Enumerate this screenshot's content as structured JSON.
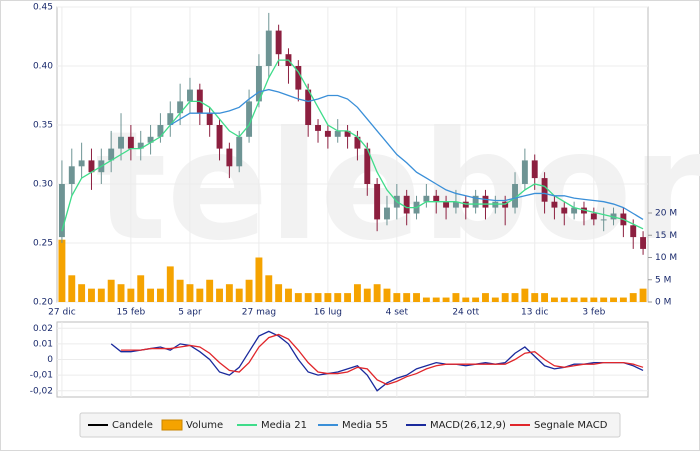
{
  "chart_data": [
    {
      "type": "candlestick",
      "watermark": "teleborsa",
      "categories": [
        "27 dic",
        null,
        null,
        null,
        null,
        null,
        null,
        "15 feb",
        null,
        null,
        null,
        null,
        null,
        "5 apr",
        null,
        null,
        null,
        null,
        null,
        null,
        "27 mag",
        null,
        null,
        null,
        null,
        null,
        null,
        "16 lug",
        null,
        null,
        null,
        null,
        null,
        null,
        "4 set",
        null,
        null,
        null,
        null,
        null,
        null,
        "24 ott",
        null,
        null,
        null,
        null,
        null,
        null,
        "13 dic",
        null,
        null,
        null,
        null,
        null,
        "3 feb",
        null,
        null,
        null,
        null,
        null
      ],
      "ylim": [
        0.2,
        0.45
      ],
      "yticks": [
        {
          "value": 0.2,
          "label": "0.20"
        },
        0.25,
        {
          "value": 0.3,
          "label": "0.30"
        },
        0.35,
        {
          "value": 0.4,
          "label": "0.40"
        },
        0.45
      ],
      "y2lim": [
        0,
        66.3
      ],
      "y2ticks": [
        {
          "value": 0,
          "label": "0 M"
        },
        {
          "value": 5,
          "label": "5 M"
        },
        {
          "value": 10,
          "label": "10 M"
        },
        {
          "value": 15,
          "label": "15 M"
        },
        {
          "value": 20,
          "label": "20 M"
        }
      ],
      "grid": true,
      "series": [
        {
          "name": "Candele",
          "type": "candlestick",
          "color": "#000000",
          "up_color": "#6e9494",
          "down_color": "#8c1f3f",
          "open": [
            0.255,
            0.3,
            0.315,
            0.32,
            0.31,
            0.32,
            0.33,
            0.34,
            0.33,
            0.335,
            0.34,
            0.35,
            0.36,
            0.37,
            0.38,
            0.36,
            0.35,
            0.33,
            0.315,
            0.34,
            0.37,
            0.4,
            0.43,
            0.41,
            0.4,
            0.38,
            0.35,
            0.345,
            0.34,
            0.345,
            0.34,
            0.33,
            0.3,
            0.27,
            0.28,
            0.29,
            0.275,
            0.285,
            0.29,
            0.285,
            0.28,
            0.285,
            0.28,
            0.29,
            0.28,
            0.285,
            0.28,
            0.3,
            0.32,
            0.305,
            0.285,
            0.28,
            0.275,
            0.28,
            0.275,
            0.27,
            0.27,
            0.275,
            0.265,
            0.255
          ],
          "high": [
            0.32,
            0.33,
            0.335,
            0.33,
            0.33,
            0.345,
            0.36,
            0.35,
            0.345,
            0.35,
            0.36,
            0.37,
            0.385,
            0.39,
            0.385,
            0.365,
            0.355,
            0.335,
            0.345,
            0.38,
            0.41,
            0.445,
            0.435,
            0.415,
            0.405,
            0.385,
            0.355,
            0.35,
            0.355,
            0.35,
            0.345,
            0.335,
            0.305,
            0.29,
            0.3,
            0.295,
            0.29,
            0.3,
            0.295,
            0.29,
            0.295,
            0.29,
            0.295,
            0.295,
            0.29,
            0.29,
            0.31,
            0.33,
            0.325,
            0.31,
            0.29,
            0.285,
            0.285,
            0.285,
            0.28,
            0.28,
            0.28,
            0.28,
            0.27,
            0.26
          ],
          "low": [
            0.25,
            0.29,
            0.305,
            0.295,
            0.3,
            0.31,
            0.32,
            0.32,
            0.32,
            0.325,
            0.335,
            0.34,
            0.35,
            0.36,
            0.35,
            0.34,
            0.32,
            0.305,
            0.31,
            0.335,
            0.365,
            0.39,
            0.4,
            0.385,
            0.37,
            0.34,
            0.335,
            0.33,
            0.335,
            0.33,
            0.32,
            0.29,
            0.26,
            0.265,
            0.27,
            0.265,
            0.27,
            0.28,
            0.275,
            0.27,
            0.275,
            0.27,
            0.275,
            0.27,
            0.275,
            0.265,
            0.275,
            0.295,
            0.295,
            0.275,
            0.27,
            0.265,
            0.27,
            0.265,
            0.265,
            0.26,
            0.265,
            0.255,
            0.245,
            0.24
          ],
          "close": [
            0.3,
            0.315,
            0.32,
            0.31,
            0.32,
            0.33,
            0.34,
            0.33,
            0.335,
            0.34,
            0.35,
            0.36,
            0.37,
            0.38,
            0.36,
            0.35,
            0.33,
            0.315,
            0.34,
            0.37,
            0.4,
            0.43,
            0.41,
            0.4,
            0.38,
            0.35,
            0.345,
            0.34,
            0.345,
            0.34,
            0.33,
            0.3,
            0.27,
            0.28,
            0.29,
            0.275,
            0.285,
            0.29,
            0.285,
            0.28,
            0.285,
            0.28,
            0.29,
            0.28,
            0.285,
            0.28,
            0.3,
            0.32,
            0.305,
            0.285,
            0.28,
            0.275,
            0.28,
            0.275,
            0.27,
            0.27,
            0.275,
            0.265,
            0.255,
            0.245
          ]
        },
        {
          "name": "Volume",
          "type": "bar",
          "axis": "y2",
          "color": "#f5a300",
          "values": [
            14,
            6,
            4,
            3,
            3,
            5,
            4,
            3,
            6,
            3,
            3,
            8,
            5,
            4,
            3,
            5,
            3,
            4,
            3,
            5,
            10,
            6,
            4,
            3,
            2,
            2,
            2,
            2,
            2,
            2,
            4,
            3,
            4,
            3,
            2,
            2,
            2,
            1,
            1,
            1,
            2,
            1,
            1,
            2,
            1,
            2,
            2,
            3,
            2,
            2,
            1,
            1,
            1,
            1,
            1,
            1,
            1,
            1,
            2,
            3
          ]
        },
        {
          "name": "Media 21",
          "type": "line",
          "color": "#3fdc8a",
          "values": [
            0.26,
            0.29,
            0.305,
            0.31,
            0.315,
            0.32,
            0.325,
            0.33,
            0.33,
            0.335,
            0.34,
            0.35,
            0.36,
            0.37,
            0.37,
            0.365,
            0.355,
            0.345,
            0.34,
            0.35,
            0.37,
            0.39,
            0.405,
            0.405,
            0.395,
            0.38,
            0.365,
            0.35,
            0.345,
            0.345,
            0.34,
            0.33,
            0.31,
            0.295,
            0.285,
            0.28,
            0.28,
            0.285,
            0.285,
            0.285,
            0.285,
            0.283,
            0.283,
            0.283,
            0.283,
            0.283,
            0.288,
            0.295,
            0.3,
            0.298,
            0.29,
            0.285,
            0.28,
            0.278,
            0.276,
            0.274,
            0.272,
            0.27,
            0.266,
            0.262
          ]
        },
        {
          "name": "Media 55",
          "type": "line",
          "color": "#3a8fd8",
          "values": [
            null,
            null,
            null,
            null,
            null,
            null,
            null,
            null,
            null,
            null,
            null,
            0.35,
            0.355,
            0.36,
            0.36,
            0.36,
            0.36,
            0.362,
            0.365,
            0.372,
            0.378,
            0.38,
            0.378,
            0.375,
            0.372,
            0.37,
            0.372,
            0.375,
            0.375,
            0.372,
            0.365,
            0.355,
            0.345,
            0.335,
            0.325,
            0.318,
            0.31,
            0.305,
            0.3,
            0.295,
            0.292,
            0.29,
            0.288,
            0.287,
            0.286,
            0.286,
            0.288,
            0.29,
            0.292,
            0.292,
            0.29,
            0.29,
            0.288,
            0.287,
            0.286,
            0.285,
            0.283,
            0.28,
            0.275,
            0.27
          ]
        }
      ]
    },
    {
      "type": "line",
      "ylim": [
        -0.024,
        0.024
      ],
      "yticks": [
        0.02,
        0.01,
        0,
        {
          "value": -0.01,
          "label": "-0,01"
        },
        {
          "value": -0.02,
          "label": "-0,02"
        }
      ],
      "grid": true,
      "series": [
        {
          "name": "MACD(26,12,9)",
          "color": "#1a2a9c",
          "values": [
            null,
            null,
            null,
            null,
            null,
            0.01,
            0.005,
            0.005,
            0.006,
            0.007,
            0.008,
            0.006,
            0.01,
            0.009,
            0.005,
            0.0,
            -0.008,
            -0.01,
            -0.005,
            0.005,
            0.015,
            0.018,
            0.015,
            0.01,
            0.0,
            -0.008,
            -0.01,
            -0.009,
            -0.008,
            -0.006,
            -0.004,
            -0.01,
            -0.02,
            -0.015,
            -0.012,
            -0.01,
            -0.006,
            -0.004,
            -0.002,
            -0.003,
            -0.003,
            -0.004,
            -0.003,
            -0.002,
            -0.003,
            -0.002,
            0.004,
            0.008,
            0.002,
            -0.004,
            -0.006,
            -0.005,
            -0.003,
            -0.003,
            -0.002,
            -0.002,
            -0.002,
            -0.002,
            -0.004,
            -0.007
          ]
        },
        {
          "name": "Segnale MACD",
          "color": "#e0262b",
          "values": [
            null,
            null,
            null,
            null,
            null,
            null,
            0.006,
            0.006,
            0.006,
            0.007,
            0.007,
            0.007,
            0.008,
            0.009,
            0.008,
            0.004,
            -0.002,
            -0.007,
            -0.008,
            -0.002,
            0.008,
            0.014,
            0.016,
            0.013,
            0.006,
            -0.002,
            -0.008,
            -0.009,
            -0.009,
            -0.008,
            -0.005,
            -0.006,
            -0.013,
            -0.016,
            -0.014,
            -0.011,
            -0.009,
            -0.006,
            -0.004,
            -0.003,
            -0.003,
            -0.003,
            -0.003,
            -0.003,
            -0.003,
            -0.003,
            0.0,
            0.004,
            0.005,
            0.0,
            -0.004,
            -0.005,
            -0.004,
            -0.003,
            -0.003,
            -0.002,
            -0.002,
            -0.002,
            -0.003,
            -0.005
          ]
        }
      ]
    }
  ]
}
